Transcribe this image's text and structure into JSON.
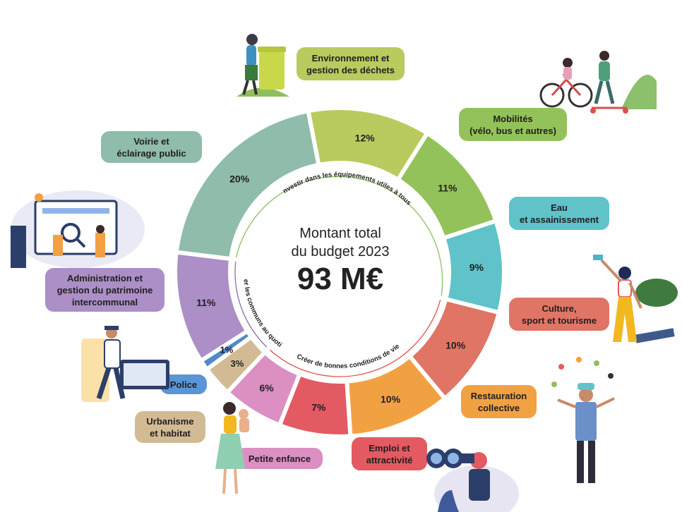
{
  "chart_data": {
    "type": "pie",
    "variant": "donut",
    "center_title": "Montant total\ndu budget 2023",
    "center_total": "93 M€",
    "slices": [
      {
        "label": "Environnement et\ngestion des déchets",
        "value": 12,
        "value_label": "12%",
        "color": "#b9cb5e",
        "label_color": "#b9cb5e"
      },
      {
        "label": "Mobilités\n(vélo, bus et autres)",
        "value": 11,
        "value_label": "11%",
        "color": "#94c25a",
        "label_color": "#94c25a"
      },
      {
        "label": "Eau\net assainissement",
        "value": 9,
        "value_label": "9%",
        "color": "#5fc3c9",
        "label_color": "#5fc3c9"
      },
      {
        "label": "Culture,\nsport et tourisme",
        "value": 10,
        "value_label": "10%",
        "color": "#e07566",
        "label_color": "#e07566"
      },
      {
        "label": "Restauration\ncollective",
        "value": 10,
        "value_label": "10%",
        "color": "#f2a142",
        "label_color": "#f2a142"
      },
      {
        "label": "Emploi et\nattractivité",
        "value": 7,
        "value_label": "7%",
        "color": "#e35a62",
        "label_color": "#e35a62"
      },
      {
        "label": "Petite enfance",
        "value": 6,
        "value_label": "6%",
        "color": "#dc8fc2",
        "label_color": "#dc8fc2"
      },
      {
        "label": "Urbanisme\net habitat",
        "value": 3,
        "value_label": "3%",
        "color": "#d2bb94",
        "label_color": "#d2bb94"
      },
      {
        "label": "Police",
        "value": 1,
        "value_label": "1%",
        "color": "#4f8ac9",
        "label_color": "#5a95d5"
      },
      {
        "label": "Administration et\ngestion du patrimoine\nintercommunal",
        "value": 11,
        "value_label": "11%",
        "color": "#ab8fc6",
        "label_color": "#ab8fc6"
      },
      {
        "label": "Voirie et\néclairage public",
        "value": 20,
        "value_label": "20%",
        "color": "#8fbcab",
        "label_color": "#8fbcab"
      }
    ],
    "groups": [
      {
        "label": "Investir dans les équipements utiles à tous",
        "color": "#8cbf5d"
      },
      {
        "label": "Créer de bonnes conditions de vie",
        "color": "#e0504e"
      },
      {
        "label": "Gérer les communs au quotidien",
        "color": "#8b6bb6"
      }
    ]
  },
  "illustrations": [
    {
      "name": "environment-illustration-icon"
    },
    {
      "name": "mobility-illustration-icon"
    },
    {
      "name": "administration-illustration-icon"
    },
    {
      "name": "culture-sport-illustration-icon"
    },
    {
      "name": "police-illustration-icon"
    },
    {
      "name": "restauration-illustration-icon"
    },
    {
      "name": "petite-enfance-illustration-icon"
    },
    {
      "name": "emploi-illustration-icon"
    }
  ]
}
